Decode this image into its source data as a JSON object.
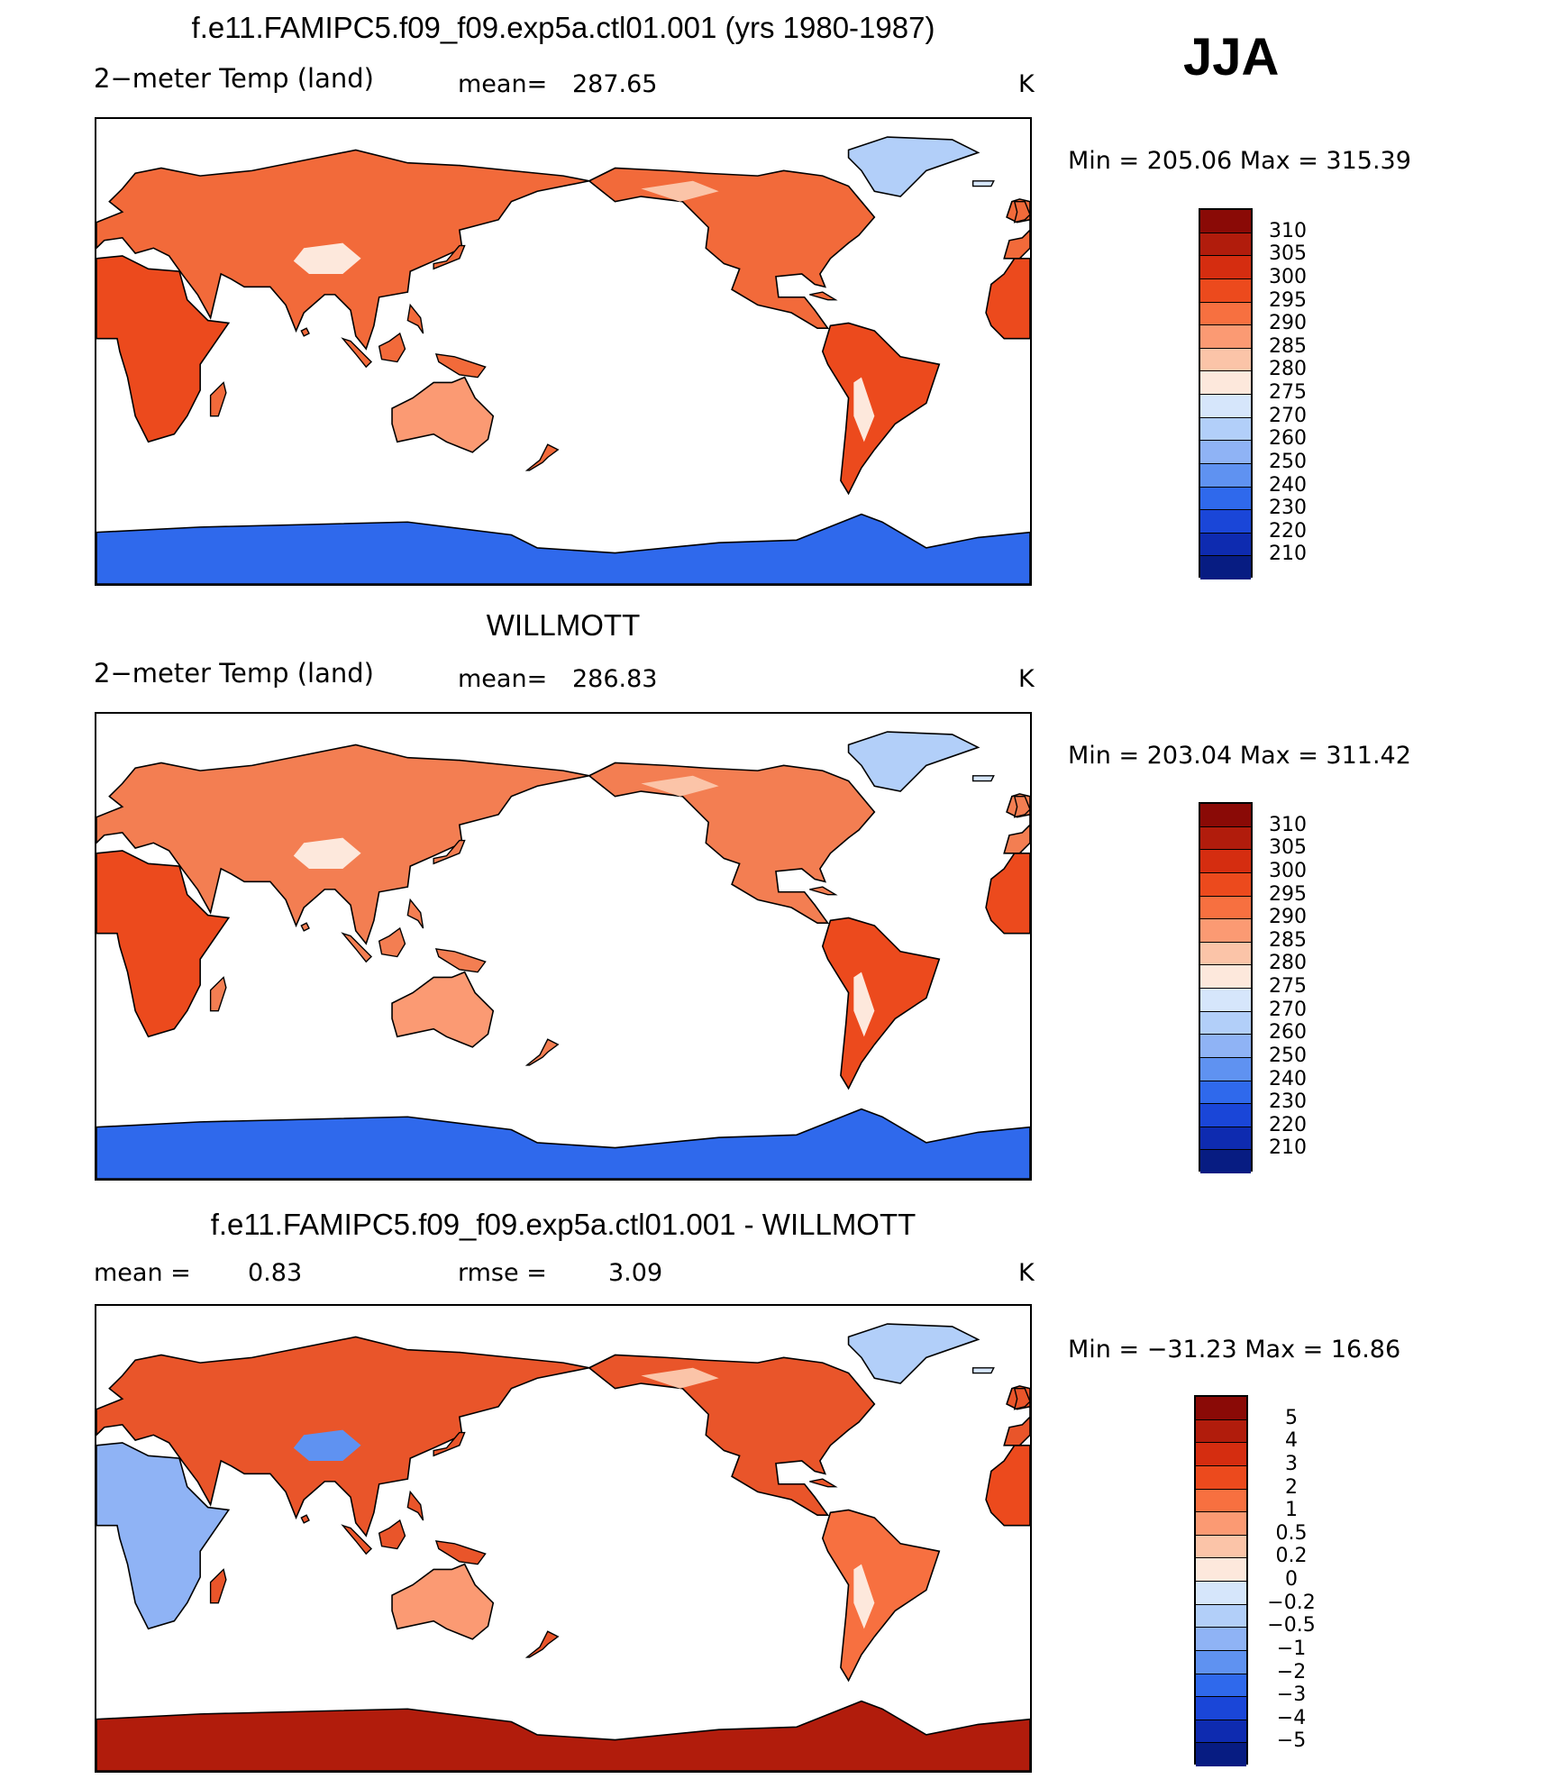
{
  "season": "JJA",
  "panels": [
    {
      "title": "f.e11.FAMIPC5.f09_f09.exp5a.ctl01.001 (yrs 1980-1987)",
      "left_label": "2−meter Temp (land)",
      "mid_label": "mean=",
      "mid_value": "287.65",
      "unit": "K",
      "min_label": "Min",
      "min_value": "205.06",
      "max_label": "Max",
      "max_value": "315.39",
      "scale": "abs",
      "land_fill": "#f26a3a",
      "levels": [
        "310",
        "305",
        "300",
        "295",
        "290",
        "285",
        "280",
        "275",
        "270",
        "260",
        "250",
        "240",
        "230",
        "220",
        "210"
      ],
      "colors": [
        "#8a0a06",
        "#b11c0c",
        "#d52d10",
        "#ec4a1d",
        "#f77040",
        "#fb9a73",
        "#fbc4a8",
        "#fde8dc",
        "#d6e6fb",
        "#b2cff9",
        "#8fb3f5",
        "#5f92f1",
        "#2f69ec",
        "#1a46d8",
        "#0e2bb0",
        "#071c82"
      ]
    },
    {
      "title": "WILLMOTT",
      "left_label": "2−meter Temp (land)",
      "mid_label": "mean=",
      "mid_value": "286.83",
      "unit": "K",
      "min_label": "Min",
      "min_value": "203.04",
      "max_label": "Max",
      "max_value": "311.42",
      "scale": "abs",
      "land_fill": "#f37e52",
      "levels": [
        "310",
        "305",
        "300",
        "295",
        "290",
        "285",
        "280",
        "275",
        "270",
        "260",
        "250",
        "240",
        "230",
        "220",
        "210"
      ],
      "colors": [
        "#8a0a06",
        "#b11c0c",
        "#d52d10",
        "#ec4a1d",
        "#f77040",
        "#fb9a73",
        "#fbc4a8",
        "#fde8dc",
        "#d6e6fb",
        "#b2cff9",
        "#8fb3f5",
        "#5f92f1",
        "#2f69ec",
        "#1a46d8",
        "#0e2bb0",
        "#071c82"
      ]
    },
    {
      "title": "f.e11.FAMIPC5.f09_f09.exp5a.ctl01.001 - WILLMOTT",
      "left_label": "mean =",
      "left_value": "0.83",
      "mid_label": "rmse =",
      "mid_value": "3.09",
      "unit": "K",
      "min_label": "Min",
      "min_value": "−31.23",
      "max_label": "Max",
      "max_value": "16.86",
      "scale": "diff",
      "land_fill": "#e9552a",
      "levels": [
        "5",
        "4",
        "3",
        "2",
        "1",
        "0.5",
        "0.2",
        "0",
        "−0.2",
        "−0.5",
        "−1",
        "−2",
        "−3",
        "−4",
        "−5"
      ],
      "colors": [
        "#8a0a06",
        "#b11c0c",
        "#d52d10",
        "#ec4a1d",
        "#f77040",
        "#fb9a73",
        "#fbc4a8",
        "#fde8dc",
        "#d6e6fb",
        "#b2cff9",
        "#8fb3f5",
        "#5f92f1",
        "#2f69ec",
        "#1a46d8",
        "#0e2bb0",
        "#071c82"
      ]
    }
  ]
}
